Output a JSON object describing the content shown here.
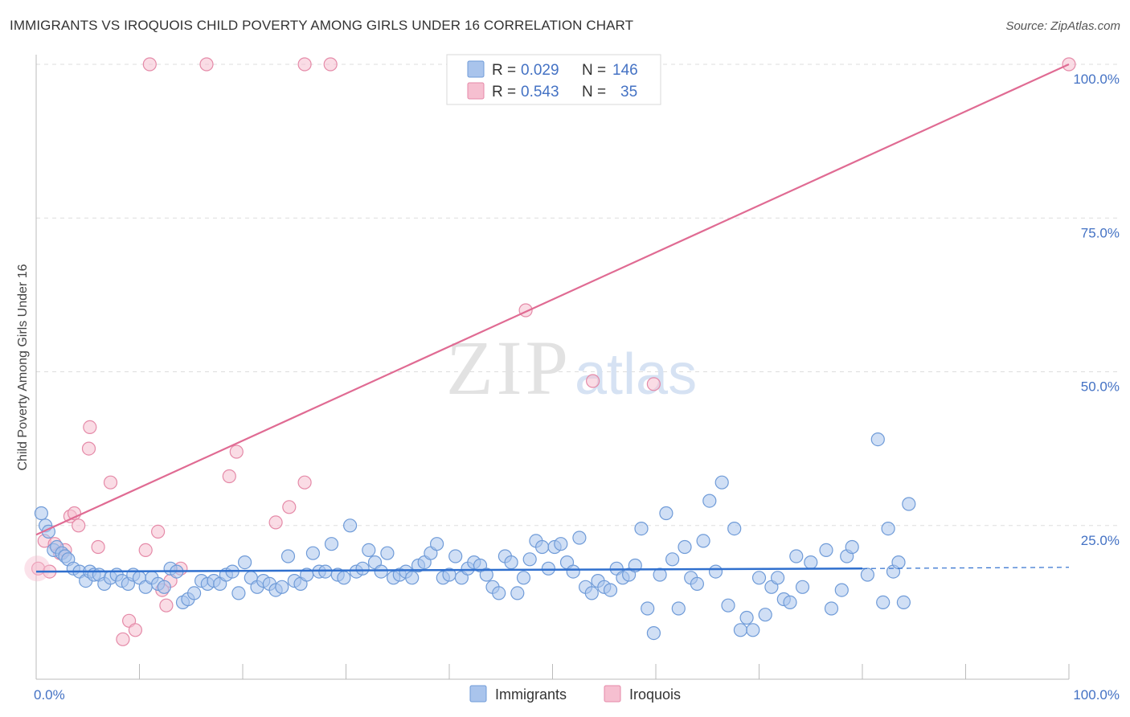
{
  "title": "IMMIGRANTS VS IROQUOIS CHILD POVERTY AMONG GIRLS UNDER 16 CORRELATION CHART",
  "source": "Source: ZipAtlas.com",
  "watermark": {
    "zip": "ZIP",
    "atlas": "atlas"
  },
  "colors": {
    "immigrants_fill": "#a9c4ec",
    "immigrants_stroke": "#6f9bd8",
    "immigrants_line": "#2f6fce",
    "iroquois_fill": "#f6bfd0",
    "iroquois_stroke": "#e58aa8",
    "iroquois_line": "#e06b93",
    "tick_text": "#4472c4",
    "grid": "#dddddd"
  },
  "legend": {
    "rows": [
      {
        "r_label": "R =",
        "r_value": "0.029",
        "n_label": "N =",
        "n_value": "146"
      },
      {
        "r_label": "R =",
        "r_value": "0.543",
        "n_label": "N =",
        "n_value": "35"
      }
    ]
  },
  "chart_data": {
    "type": "scatter",
    "title": "IMMIGRANTS VS IROQUOIS CHILD POVERTY AMONG GIRLS UNDER 16 CORRELATION CHART",
    "xlabel": "",
    "ylabel": "Child Poverty Among Girls Under 16",
    "xlim": [
      0,
      100
    ],
    "ylim": [
      0,
      100
    ],
    "x_tick_labels": [
      "0.0%",
      "100.0%"
    ],
    "y_tick_labels": [
      {
        "value": 25,
        "label": "25.0%"
      },
      {
        "value": 50,
        "label": "50.0%"
      },
      {
        "value": 75,
        "label": "75.0%"
      },
      {
        "value": 100,
        "label": "100.0%"
      }
    ],
    "grid": true,
    "legend_position": "top-center",
    "series": [
      {
        "name": "Immigrants",
        "r": 0.029,
        "n": 146,
        "trend": {
          "x0": 0,
          "y0": 17.5,
          "x1": 80,
          "y1": 18.0,
          "dash_to_x": 100,
          "dash_to_y": 18.2
        },
        "points": [
          [
            0.5,
            27.0
          ],
          [
            0.9,
            25.0
          ],
          [
            1.2,
            24.0
          ],
          [
            1.7,
            21.0
          ],
          [
            2.0,
            21.5
          ],
          [
            2.5,
            20.5
          ],
          [
            2.8,
            20.0
          ],
          [
            3.1,
            19.5
          ],
          [
            3.6,
            18.0
          ],
          [
            4.2,
            17.5
          ],
          [
            4.8,
            16.0
          ],
          [
            5.2,
            17.5
          ],
          [
            5.6,
            17.0
          ],
          [
            6.1,
            17.0
          ],
          [
            6.6,
            15.5
          ],
          [
            7.2,
            16.5
          ],
          [
            7.8,
            17.0
          ],
          [
            8.3,
            16.0
          ],
          [
            8.9,
            15.5
          ],
          [
            9.4,
            17.0
          ],
          [
            10.0,
            16.5
          ],
          [
            10.6,
            15.0
          ],
          [
            11.2,
            16.5
          ],
          [
            11.8,
            15.5
          ],
          [
            12.4,
            15.0
          ],
          [
            13.0,
            18.0
          ],
          [
            13.6,
            17.5
          ],
          [
            14.2,
            12.5
          ],
          [
            14.7,
            13.0
          ],
          [
            15.3,
            14.0
          ],
          [
            16.0,
            16.0
          ],
          [
            16.6,
            15.5
          ],
          [
            17.2,
            16.0
          ],
          [
            17.8,
            15.5
          ],
          [
            18.4,
            17.0
          ],
          [
            19.0,
            17.5
          ],
          [
            19.6,
            14.0
          ],
          [
            20.2,
            19.0
          ],
          [
            20.8,
            16.5
          ],
          [
            21.4,
            15.0
          ],
          [
            22.0,
            16.0
          ],
          [
            22.6,
            15.5
          ],
          [
            23.2,
            14.5
          ],
          [
            23.8,
            15.0
          ],
          [
            24.4,
            20.0
          ],
          [
            25.0,
            16.0
          ],
          [
            25.6,
            15.5
          ],
          [
            26.2,
            17.0
          ],
          [
            26.8,
            20.5
          ],
          [
            27.4,
            17.5
          ],
          [
            28.0,
            17.5
          ],
          [
            28.6,
            22.0
          ],
          [
            29.2,
            17.0
          ],
          [
            29.8,
            16.5
          ],
          [
            30.4,
            25.0
          ],
          [
            31.0,
            17.5
          ],
          [
            31.6,
            18.0
          ],
          [
            32.2,
            21.0
          ],
          [
            32.8,
            19.0
          ],
          [
            33.4,
            17.5
          ],
          [
            34.0,
            20.5
          ],
          [
            34.6,
            16.5
          ],
          [
            35.2,
            17.0
          ],
          [
            35.8,
            17.5
          ],
          [
            36.4,
            16.5
          ],
          [
            37.0,
            18.5
          ],
          [
            37.6,
            19.0
          ],
          [
            38.2,
            20.5
          ],
          [
            38.8,
            22.0
          ],
          [
            39.4,
            16.5
          ],
          [
            40.0,
            17.0
          ],
          [
            40.6,
            20.0
          ],
          [
            41.2,
            16.5
          ],
          [
            41.8,
            18.0
          ],
          [
            42.4,
            19.0
          ],
          [
            43.0,
            18.5
          ],
          [
            43.6,
            17.0
          ],
          [
            44.2,
            15.0
          ],
          [
            44.8,
            14.0
          ],
          [
            45.4,
            20.0
          ],
          [
            46.0,
            19.0
          ],
          [
            46.6,
            14.0
          ],
          [
            47.2,
            16.5
          ],
          [
            47.8,
            19.5
          ],
          [
            48.4,
            22.5
          ],
          [
            49.0,
            21.5
          ],
          [
            49.6,
            18.0
          ],
          [
            50.2,
            21.5
          ],
          [
            50.8,
            22.0
          ],
          [
            51.4,
            19.0
          ],
          [
            52.0,
            17.5
          ],
          [
            52.6,
            23.0
          ],
          [
            53.2,
            15.0
          ],
          [
            53.8,
            14.0
          ],
          [
            54.4,
            16.0
          ],
          [
            55.0,
            15.0
          ],
          [
            55.6,
            14.5
          ],
          [
            56.2,
            18.0
          ],
          [
            56.8,
            16.5
          ],
          [
            57.4,
            17.0
          ],
          [
            58.0,
            18.5
          ],
          [
            58.6,
            24.5
          ],
          [
            59.2,
            11.5
          ],
          [
            59.8,
            7.5
          ],
          [
            60.4,
            17.0
          ],
          [
            61.0,
            27.0
          ],
          [
            61.6,
            19.5
          ],
          [
            62.2,
            11.5
          ],
          [
            62.8,
            21.5
          ],
          [
            63.4,
            16.5
          ],
          [
            64.0,
            15.5
          ],
          [
            64.6,
            22.5
          ],
          [
            65.2,
            29.0
          ],
          [
            65.8,
            17.5
          ],
          [
            66.4,
            32.0
          ],
          [
            67.0,
            12.0
          ],
          [
            67.6,
            24.5
          ],
          [
            68.2,
            8.0
          ],
          [
            68.8,
            10.0
          ],
          [
            69.4,
            8.0
          ],
          [
            70.0,
            16.5
          ],
          [
            70.6,
            10.5
          ],
          [
            71.2,
            15.0
          ],
          [
            71.8,
            16.5
          ],
          [
            72.4,
            13.0
          ],
          [
            73.0,
            12.5
          ],
          [
            73.6,
            20.0
          ],
          [
            74.2,
            15.0
          ],
          [
            75.0,
            19.0
          ],
          [
            76.5,
            21.0
          ],
          [
            77.0,
            11.5
          ],
          [
            78.0,
            14.5
          ],
          [
            78.5,
            20.0
          ],
          [
            79.0,
            21.5
          ],
          [
            80.5,
            17.0
          ],
          [
            81.5,
            39.0
          ],
          [
            82.0,
            12.5
          ],
          [
            82.5,
            24.5
          ],
          [
            83.0,
            17.5
          ],
          [
            83.5,
            19.0
          ],
          [
            84.0,
            12.5
          ],
          [
            84.5,
            28.5
          ]
        ]
      },
      {
        "name": "Iroquois",
        "r": 0.543,
        "n": 35,
        "trend": {
          "x0": 0,
          "y0": 23.5,
          "x1": 100,
          "y1": 100
        },
        "points": [
          [
            0.2,
            18.0
          ],
          [
            0.8,
            22.5
          ],
          [
            1.3,
            17.5
          ],
          [
            1.8,
            22.0
          ],
          [
            2.3,
            20.5
          ],
          [
            2.8,
            21.0
          ],
          [
            3.3,
            26.5
          ],
          [
            3.7,
            27.0
          ],
          [
            4.1,
            25.0
          ],
          [
            5.1,
            37.5
          ],
          [
            5.2,
            41.0
          ],
          [
            6.0,
            21.5
          ],
          [
            7.2,
            32.0
          ],
          [
            8.4,
            6.5
          ],
          [
            9.0,
            9.5
          ],
          [
            9.6,
            8.0
          ],
          [
            10.6,
            21.0
          ],
          [
            11.0,
            100.0
          ],
          [
            11.8,
            24.0
          ],
          [
            12.2,
            14.5
          ],
          [
            12.6,
            12.0
          ],
          [
            13.0,
            16.0
          ],
          [
            14.0,
            18.0
          ],
          [
            16.5,
            100.0
          ],
          [
            18.7,
            33.0
          ],
          [
            19.4,
            37.0
          ],
          [
            23.2,
            25.5
          ],
          [
            24.5,
            28.0
          ],
          [
            26.0,
            32.0
          ],
          [
            26.0,
            100.0
          ],
          [
            28.5,
            100.0
          ],
          [
            47.4,
            60.0
          ],
          [
            53.9,
            48.5
          ],
          [
            59.8,
            48.0
          ],
          [
            100.0,
            100.0
          ]
        ]
      }
    ]
  },
  "bottom_legend": {
    "items": [
      "Immigrants",
      "Iroquois"
    ]
  }
}
